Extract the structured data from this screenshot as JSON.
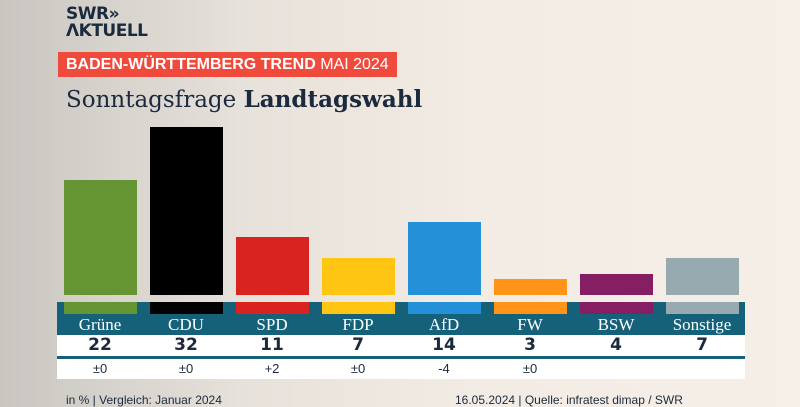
{
  "logo": {
    "line1": "SWR»",
    "line2": "ΛKTUELL"
  },
  "banner": {
    "bold": "BADEN-WÜRTTEMBERG TREND",
    "thin": "MAI 2024"
  },
  "title": {
    "regular": "Sonntagsfrage",
    "bold": "Landtagswahl"
  },
  "chart_data": {
    "type": "bar",
    "categories": [
      "Grüne",
      "CDU",
      "SPD",
      "FDP",
      "AfD",
      "FW",
      "BSW",
      "Sonstige"
    ],
    "values": [
      22,
      32,
      11,
      7,
      14,
      3,
      4,
      7
    ],
    "value_labels": [
      "22",
      "32",
      "11",
      "7",
      "14",
      "3",
      "4",
      "7"
    ],
    "changes": [
      "±0",
      "±0",
      "+2",
      "±0",
      "-4",
      "±0",
      "",
      ""
    ],
    "colors": [
      "#659432",
      "#000000",
      "#d8231f",
      "#fec512",
      "#2390d8",
      "#ff9419",
      "#851e63",
      "#97aab0"
    ],
    "unit": "in %"
  },
  "footer": {
    "left": "in % | Vergleich: Januar 2024",
    "right": "16.05.2024 | Quelle: infratest dimap / SWR"
  }
}
